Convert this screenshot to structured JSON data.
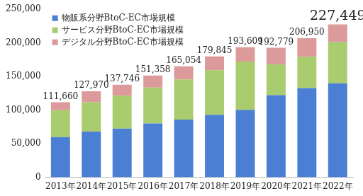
{
  "chart_data": {
    "type": "bar",
    "stacked": true,
    "grid": false,
    "legend": "upper left",
    "categories": [
      "2013年",
      "2014年",
      "2015年",
      "2016年",
      "2017年",
      "2018年",
      "2019年",
      "2020年",
      "2021年",
      "2022年"
    ],
    "series": [
      {
        "name": "物販系分野BtoC-EC市場規模",
        "color": "#4a7fd4",
        "values": [
          59931,
          68043,
          72398,
          80043,
          86008,
          92992,
          100515,
          122333,
          132865,
          139997
        ]
      },
      {
        "name": "サービス分野BtoC-EC市場規模",
        "color": "#a9cc6e",
        "values": [
          40000,
          44000,
          49000,
          53532,
          59568,
          66471,
          71672,
          45832,
          46424,
          61477
        ]
      },
      {
        "name": "デジタル分野BtoC-EC市場規模",
        "color": "#dc9a9a",
        "values": [
          11729,
          15927,
          16348,
          17783,
          19478,
          20382,
          21422,
          24614,
          27661,
          25975
        ]
      }
    ],
    "totals": [
      111660,
      127970,
      137746,
      151358,
      165054,
      179845,
      193609,
      192779,
      206950,
      227449
    ],
    "total_labels": [
      "111,660",
      "127,970",
      "137,746",
      "151,358",
      "165,054",
      "179,845",
      "193,609",
      "192,779",
      "206,950",
      "227,449"
    ],
    "ylim": [
      0,
      250000
    ],
    "yticks": [
      0,
      {
        "value": 50000,
        "label": "50,000"
      },
      {
        "value": 100000,
        "label": "100,000"
      },
      {
        "value": 150000,
        "label": "150,000"
      },
      {
        "value": 200000,
        "label": "200,000"
      },
      {
        "value": 250000,
        "label": "250,000"
      }
    ]
  }
}
